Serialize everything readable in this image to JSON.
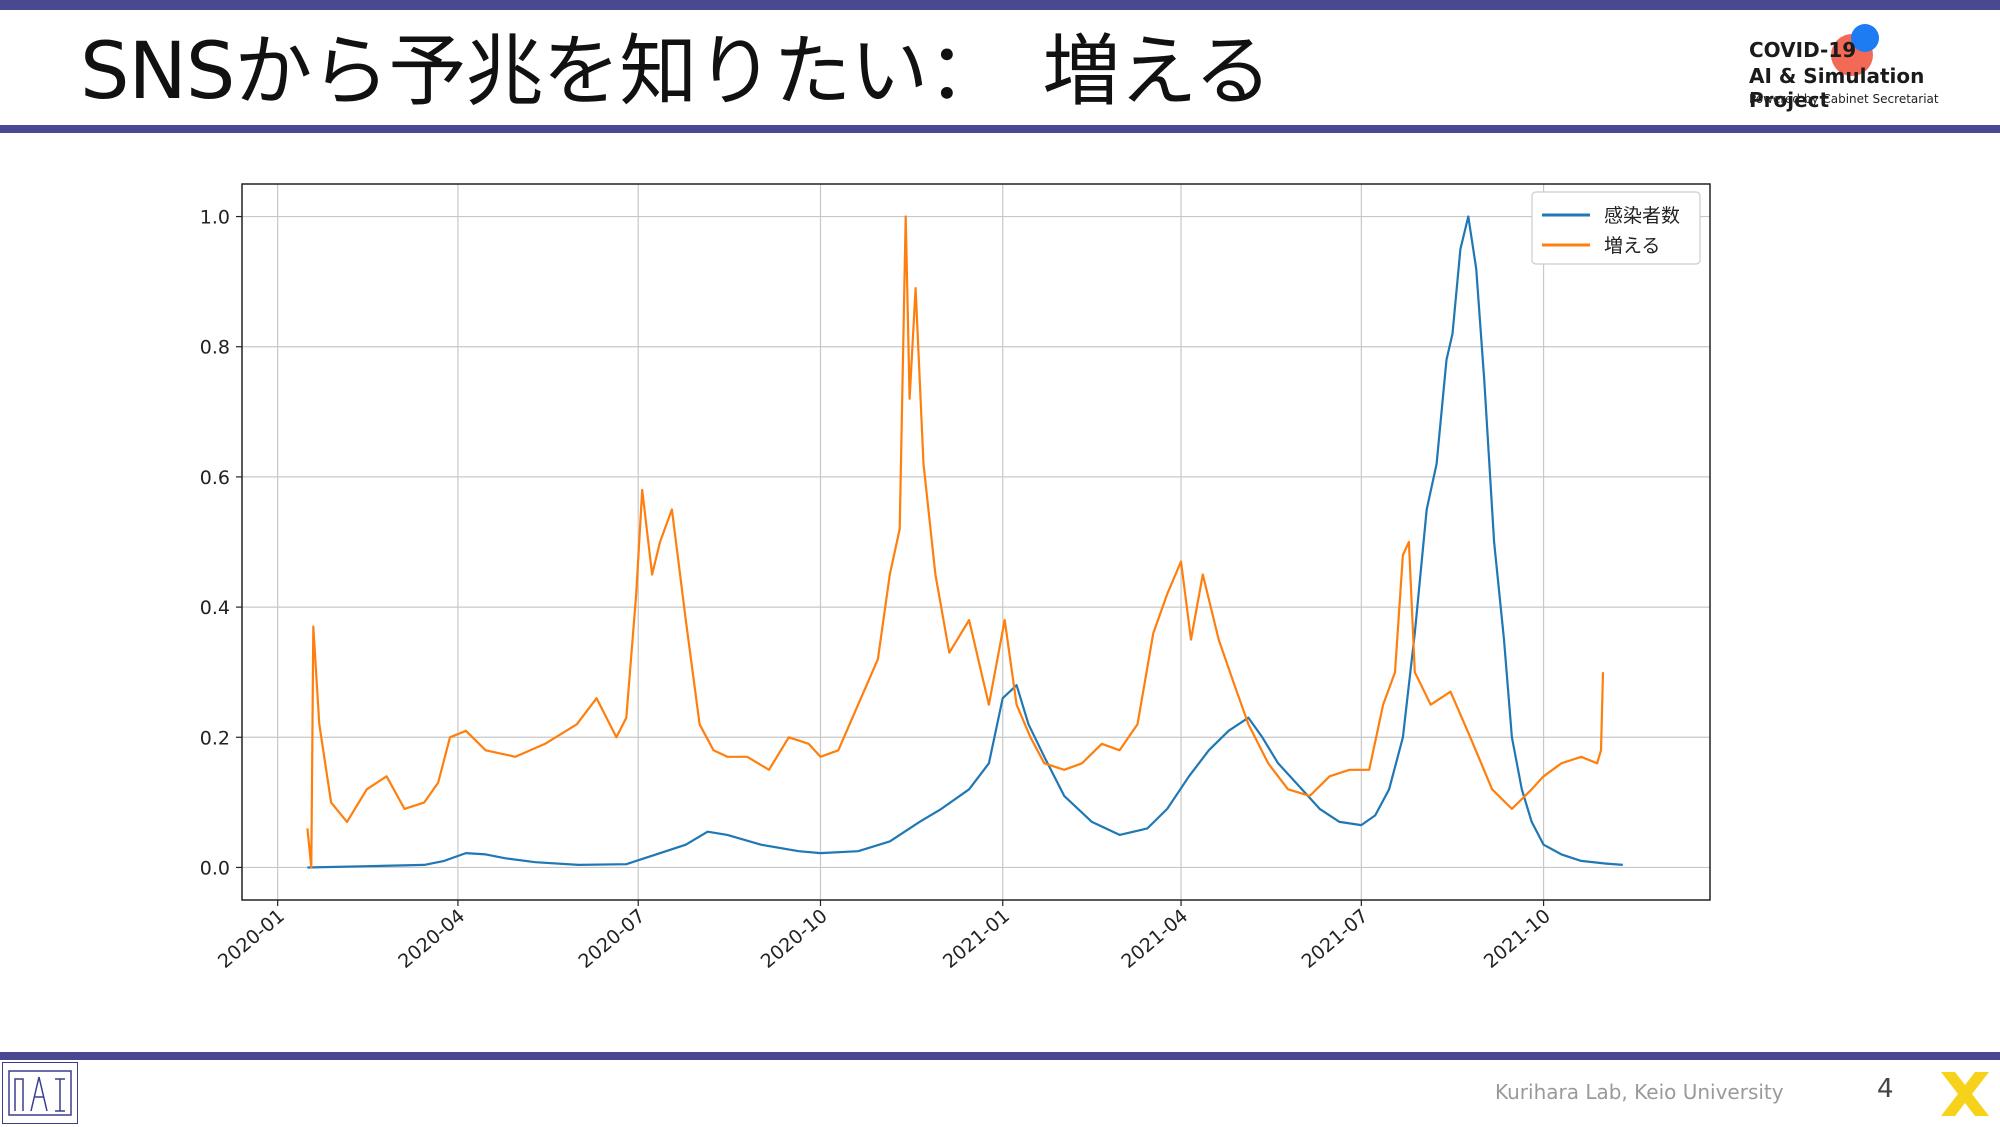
{
  "slide": {
    "title": "SNSから予兆を知りたい：　増える",
    "logo": {
      "line1": "COVID-19",
      "line2": "AI & Simulation Project",
      "line3": "Powered by Cabinet Secretariat"
    },
    "footer": "Kurihara Lab, Keio University",
    "page_number": "4",
    "icons": {
      "footer_logo": "lab-logo-icon",
      "corner": "x-mark-icon"
    },
    "colors": {
      "accent_bar": "#4a4890",
      "infected": "#1f77b4",
      "increase": "#ff7f0e",
      "corner_mark": "#f7d21b"
    }
  },
  "chart_data": {
    "type": "line",
    "title": "",
    "xlabel": "",
    "ylabel": "",
    "xlim": [
      "2019-12-14",
      "2021-12-24"
    ],
    "ylim": [
      -0.05,
      1.05
    ],
    "grid": true,
    "legend_position": "top-right",
    "x_ticks": [
      "2020-01-01",
      "2020-04-01",
      "2020-07-01",
      "2020-10-01",
      "2021-01-01",
      "2021-04-01",
      "2021-07-01",
      "2021-10-01"
    ],
    "x_tick_labels": [
      "2020-01",
      "2020-04",
      "2020-07",
      "2020-10",
      "2021-01",
      "2021-04",
      "2021-07",
      "2021-10"
    ],
    "y_ticks": [
      0.0,
      0.2,
      0.4,
      0.6,
      0.8,
      1.0
    ],
    "y_tick_labels": [
      "0.0",
      "0.2",
      "0.4",
      "0.6",
      "0.8",
      "1.0"
    ],
    "series": [
      {
        "name": "感染者数",
        "color": "#1f77b4",
        "x": [
          "2020-01-16",
          "2020-02-15",
          "2020-03-15",
          "2020-03-25",
          "2020-04-05",
          "2020-04-15",
          "2020-04-25",
          "2020-05-10",
          "2020-06-01",
          "2020-06-25",
          "2020-07-10",
          "2020-07-25",
          "2020-08-05",
          "2020-08-15",
          "2020-09-01",
          "2020-09-20",
          "2020-10-01",
          "2020-10-20",
          "2020-11-05",
          "2020-11-20",
          "2020-12-01",
          "2020-12-15",
          "2020-12-25",
          "2021-01-01",
          "2021-01-08",
          "2021-01-14",
          "2021-01-22",
          "2021-02-01",
          "2021-02-15",
          "2021-03-01",
          "2021-03-15",
          "2021-03-25",
          "2021-04-05",
          "2021-04-15",
          "2021-04-25",
          "2021-05-05",
          "2021-05-12",
          "2021-05-20",
          "2021-06-01",
          "2021-06-10",
          "2021-06-20",
          "2021-07-01",
          "2021-07-08",
          "2021-07-15",
          "2021-07-22",
          "2021-07-28",
          "2021-08-03",
          "2021-08-08",
          "2021-08-13",
          "2021-08-16",
          "2021-08-20",
          "2021-08-24",
          "2021-08-28",
          "2021-09-01",
          "2021-09-06",
          "2021-09-11",
          "2021-09-15",
          "2021-09-20",
          "2021-09-25",
          "2021-10-01",
          "2021-10-10",
          "2021-10-20",
          "2021-11-01",
          "2021-11-10"
        ],
        "values": [
          0.0,
          0.002,
          0.004,
          0.01,
          0.022,
          0.02,
          0.014,
          0.008,
          0.004,
          0.005,
          0.02,
          0.035,
          0.055,
          0.05,
          0.035,
          0.025,
          0.022,
          0.025,
          0.04,
          0.07,
          0.09,
          0.12,
          0.16,
          0.26,
          0.28,
          0.22,
          0.17,
          0.11,
          0.07,
          0.05,
          0.06,
          0.09,
          0.14,
          0.18,
          0.21,
          0.23,
          0.2,
          0.16,
          0.12,
          0.09,
          0.07,
          0.065,
          0.08,
          0.12,
          0.2,
          0.36,
          0.55,
          0.62,
          0.78,
          0.82,
          0.95,
          1.0,
          0.92,
          0.75,
          0.5,
          0.35,
          0.2,
          0.12,
          0.07,
          0.035,
          0.02,
          0.01,
          0.006,
          0.004
        ]
      },
      {
        "name": "増える",
        "color": "#ff7f0e",
        "x": [
          "2020-01-16",
          "2020-01-18",
          "2020-01-19",
          "2020-01-22",
          "2020-01-28",
          "2020-02-05",
          "2020-02-15",
          "2020-02-25",
          "2020-03-05",
          "2020-03-15",
          "2020-03-22",
          "2020-03-28",
          "2020-04-05",
          "2020-04-15",
          "2020-04-30",
          "2020-05-15",
          "2020-05-31",
          "2020-06-10",
          "2020-06-20",
          "2020-06-25",
          "2020-06-30",
          "2020-07-03",
          "2020-07-08",
          "2020-07-12",
          "2020-07-18",
          "2020-07-25",
          "2020-08-01",
          "2020-08-08",
          "2020-08-15",
          "2020-08-25",
          "2020-09-05",
          "2020-09-15",
          "2020-09-25",
          "2020-10-01",
          "2020-10-10",
          "2020-10-20",
          "2020-10-30",
          "2020-11-05",
          "2020-11-10",
          "2020-11-13",
          "2020-11-15",
          "2020-11-18",
          "2020-11-22",
          "2020-11-28",
          "2020-12-05",
          "2020-12-15",
          "2020-12-25",
          "2021-01-02",
          "2021-01-08",
          "2021-01-15",
          "2021-01-22",
          "2021-02-01",
          "2021-02-10",
          "2021-02-20",
          "2021-03-01",
          "2021-03-10",
          "2021-03-18",
          "2021-03-25",
          "2021-04-01",
          "2021-04-06",
          "2021-04-12",
          "2021-04-20",
          "2021-04-28",
          "2021-05-05",
          "2021-05-15",
          "2021-05-25",
          "2021-06-05",
          "2021-06-15",
          "2021-06-25",
          "2021-07-05",
          "2021-07-12",
          "2021-07-18",
          "2021-07-22",
          "2021-07-25",
          "2021-07-28",
          "2021-08-05",
          "2021-08-15",
          "2021-08-25",
          "2021-09-05",
          "2021-09-15",
          "2021-09-25",
          "2021-10-01",
          "2021-10-10",
          "2021-10-20",
          "2021-10-28",
          "2021-10-30",
          "2021-10-31"
        ],
        "values": [
          0.06,
          0.0,
          0.37,
          0.22,
          0.1,
          0.07,
          0.12,
          0.14,
          0.09,
          0.1,
          0.13,
          0.2,
          0.21,
          0.18,
          0.17,
          0.19,
          0.22,
          0.26,
          0.2,
          0.23,
          0.42,
          0.58,
          0.45,
          0.5,
          0.55,
          0.38,
          0.22,
          0.18,
          0.17,
          0.17,
          0.15,
          0.2,
          0.19,
          0.17,
          0.18,
          0.25,
          0.32,
          0.45,
          0.52,
          1.0,
          0.72,
          0.89,
          0.62,
          0.45,
          0.33,
          0.38,
          0.25,
          0.38,
          0.25,
          0.2,
          0.16,
          0.15,
          0.16,
          0.19,
          0.18,
          0.22,
          0.36,
          0.42,
          0.47,
          0.35,
          0.45,
          0.35,
          0.28,
          0.22,
          0.16,
          0.12,
          0.11,
          0.14,
          0.15,
          0.15,
          0.25,
          0.3,
          0.48,
          0.5,
          0.3,
          0.25,
          0.27,
          0.2,
          0.12,
          0.09,
          0.12,
          0.14,
          0.16,
          0.17,
          0.16,
          0.18,
          0.3
        ]
      }
    ]
  }
}
